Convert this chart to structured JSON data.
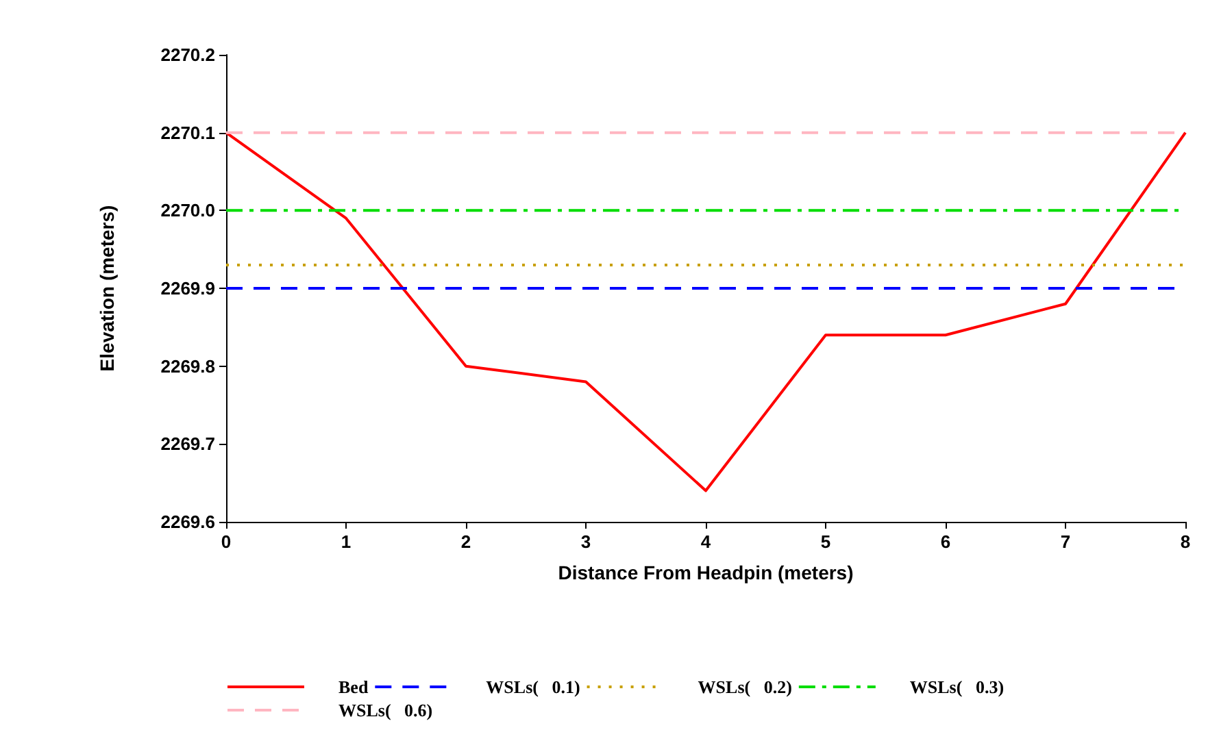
{
  "chart_data": {
    "type": "line",
    "xlabel": "Distance From Headpin (meters)",
    "ylabel": "Elevation (meters)",
    "xlim": [
      0,
      8
    ],
    "xticks": [
      0,
      1,
      2,
      3,
      4,
      5,
      6,
      7,
      8
    ],
    "ylim": [
      2269.6,
      2270.2
    ],
    "yticks": [
      {
        "value": 2269.6,
        "label": "2269.6"
      },
      {
        "value": 2269.7,
        "label": "2269.7"
      },
      {
        "value": 2269.8,
        "label": "2269.8"
      },
      {
        "value": 2269.9,
        "label": "2269.9"
      },
      {
        "value": 2270.0,
        "label": "2270.0"
      },
      {
        "value": 2270.1,
        "label": "2270.1"
      },
      {
        "value": 2270.2,
        "label": "2270.2"
      }
    ],
    "grid": false,
    "legend": "bottom",
    "marker": "none",
    "series": [
      {
        "name": "Bed",
        "color": "#ff0000",
        "line_style": "solid",
        "x": [
          0,
          1,
          2,
          3,
          4,
          5,
          6,
          7,
          8
        ],
        "values": [
          2270.1,
          2269.99,
          2269.8,
          2269.78,
          2269.64,
          2269.84,
          2269.84,
          2269.88,
          2270.1
        ]
      },
      {
        "name": "WSLs(   0.1)",
        "color": "#0000ff",
        "line_style": "dashed",
        "x": [
          0,
          8
        ],
        "values": [
          2269.9,
          2269.9
        ]
      },
      {
        "name": "WSLs(   0.2)",
        "color": "#c8a000",
        "line_style": "dotted",
        "x": [
          0,
          8
        ],
        "values": [
          2269.93,
          2269.93
        ]
      },
      {
        "name": "WSLs(   0.3)",
        "color": "#00dd00",
        "line_style": "dashdot",
        "x": [
          0,
          8
        ],
        "values": [
          2270.0,
          2270.0
        ]
      },
      {
        "name": "WSLs(   0.6)",
        "color": "#ffb6c1",
        "line_style": "dashed",
        "x": [
          0,
          8
        ],
        "values": [
          2270.1,
          2270.1
        ]
      }
    ]
  }
}
